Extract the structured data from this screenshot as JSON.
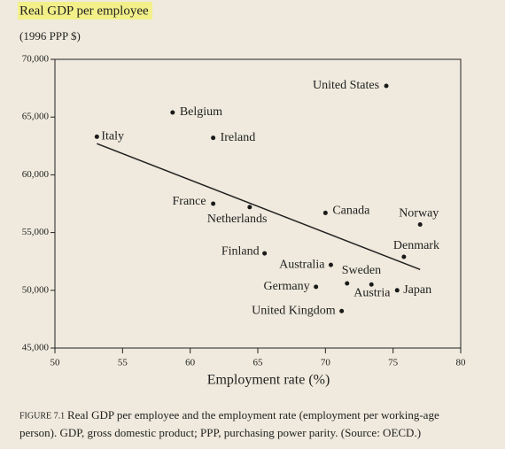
{
  "chart_data": {
    "type": "scatter",
    "title": "Real GDP per employee",
    "subtitle": "(1996 PPP $)",
    "x_label": "Employment rate (%)",
    "color": "#1a1a1a",
    "categories": [
      "United States",
      "Belgium",
      "Ireland",
      "Italy",
      "France",
      "Netherlands",
      "Canada",
      "Norway",
      "Denmark",
      "Finland",
      "Australia",
      "Sweden",
      "Austria",
      "Japan",
      "Germany",
      "United Kingdom"
    ],
    "x": [
      74.5,
      58.7,
      61.7,
      53.1,
      61.7,
      64.4,
      70.0,
      77.0,
      75.8,
      65.5,
      70.4,
      71.6,
      73.4,
      75.3,
      69.3,
      71.2
    ],
    "values": [
      67700,
      65400,
      63200,
      63300,
      57500,
      57200,
      56700,
      55700,
      52900,
      53200,
      52200,
      50600,
      50500,
      50000,
      50300,
      48200
    ],
    "trendline": {
      "x": [
        53.1,
        77
      ],
      "y": [
        62700,
        51800
      ]
    },
    "xlim": [
      50,
      80
    ],
    "xticks": [
      50,
      55,
      60,
      65,
      70,
      75,
      80
    ],
    "ylim": [
      45000,
      70000
    ],
    "yticks": [
      {
        "value": 45000,
        "label": "45,000"
      },
      {
        "value": 50000,
        "label": "50,000"
      },
      {
        "value": 55000,
        "label": "55,000"
      },
      {
        "value": 60000,
        "label": "60,000"
      },
      {
        "value": 65000,
        "label": "65,000"
      },
      {
        "value": 70000,
        "label": "70,000"
      }
    ],
    "grid": false
  },
  "caption": {
    "label": "FIGURE 7.1",
    "lines": [
      "Real GDP per employee and the employment rate (employment per working-age",
      "person). GDP, gross domestic product; PPP, purchasing power parity. (Source: OECD.)"
    ]
  }
}
